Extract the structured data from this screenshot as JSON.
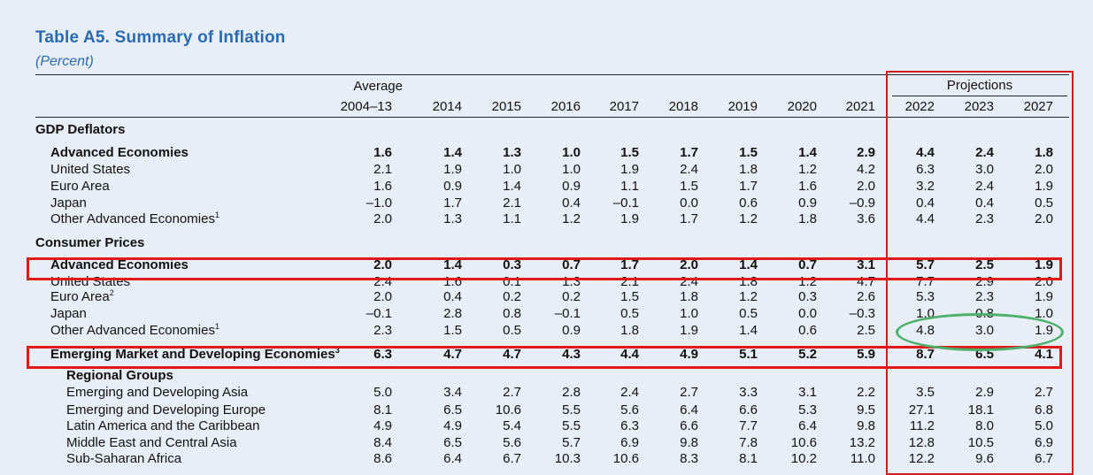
{
  "title": "Table A5. Summary of Inflation",
  "subtitle": "(Percent)",
  "header": {
    "average_top": "Average",
    "projections": "Projections",
    "years": [
      "2004–13",
      "2014",
      "2015",
      "2016",
      "2017",
      "2018",
      "2019",
      "2020",
      "2021",
      "2022",
      "2023",
      "2027"
    ]
  },
  "sections": {
    "gdp_deflators": "GDP Deflators",
    "consumer_prices": "Consumer Prices",
    "regional_groups": "Regional Groups"
  },
  "rows": {
    "gdp_adv": {
      "label": "Advanced Economies",
      "values": [
        "1.6",
        "1.4",
        "1.3",
        "1.0",
        "1.5",
        "1.7",
        "1.5",
        "1.4",
        "2.9",
        "4.4",
        "2.4",
        "1.8"
      ]
    },
    "gdp_us": {
      "label": "United States",
      "values": [
        "2.1",
        "1.9",
        "1.0",
        "1.0",
        "1.9",
        "2.4",
        "1.8",
        "1.2",
        "4.2",
        "6.3",
        "3.0",
        "2.0"
      ]
    },
    "gdp_euro": {
      "label": "Euro Area",
      "values": [
        "1.6",
        "0.9",
        "1.4",
        "0.9",
        "1.1",
        "1.5",
        "1.7",
        "1.6",
        "2.0",
        "3.2",
        "2.4",
        "1.9"
      ]
    },
    "gdp_japan": {
      "label": "Japan",
      "values": [
        "–1.0",
        "1.7",
        "2.1",
        "0.4",
        "–0.1",
        "0.0",
        "0.6",
        "0.9",
        "–0.9",
        "0.4",
        "0.4",
        "0.5"
      ]
    },
    "gdp_other": {
      "label": "Other Advanced Economies",
      "sup": "1",
      "values": [
        "2.0",
        "1.3",
        "1.1",
        "1.2",
        "1.9",
        "1.7",
        "1.2",
        "1.8",
        "3.6",
        "4.4",
        "2.3",
        "2.0"
      ]
    },
    "cp_adv": {
      "label": "Advanced Economies",
      "values": [
        "2.0",
        "1.4",
        "0.3",
        "0.7",
        "1.7",
        "2.0",
        "1.4",
        "0.7",
        "3.1",
        "5.7",
        "2.5",
        "1.9"
      ]
    },
    "cp_us": {
      "label": "United States",
      "values": [
        "2.4",
        "1.6",
        "0.1",
        "1.3",
        "2.1",
        "2.4",
        "1.8",
        "1.2",
        "4.7",
        "7.7",
        "2.9",
        "2.0"
      ]
    },
    "cp_euro": {
      "label": "Euro Area",
      "sup": "2",
      "values": [
        "2.0",
        "0.4",
        "0.2",
        "0.2",
        "1.5",
        "1.8",
        "1.2",
        "0.3",
        "2.6",
        "5.3",
        "2.3",
        "1.9"
      ]
    },
    "cp_japan": {
      "label": "Japan",
      "values": [
        "–0.1",
        "2.8",
        "0.8",
        "–0.1",
        "0.5",
        "1.0",
        "0.5",
        "0.0",
        "–0.3",
        "1.0",
        "0.8",
        "1.0"
      ]
    },
    "cp_other": {
      "label": "Other Advanced Economies",
      "sup": "1",
      "values": [
        "2.3",
        "1.5",
        "0.5",
        "0.9",
        "1.8",
        "1.9",
        "1.4",
        "0.6",
        "2.5",
        "4.8",
        "3.0",
        "1.9"
      ]
    },
    "em": {
      "label": "Emerging Market and Developing Economies",
      "sup": "3",
      "values": [
        "6.3",
        "4.7",
        "4.7",
        "4.3",
        "4.4",
        "4.9",
        "5.1",
        "5.2",
        "5.9",
        "8.7",
        "6.5",
        "4.1"
      ]
    },
    "eda": {
      "label": "Emerging and Developing Asia",
      "values": [
        "5.0",
        "3.4",
        "2.7",
        "2.8",
        "2.4",
        "2.7",
        "3.3",
        "3.1",
        "2.2",
        "3.5",
        "2.9",
        "2.7"
      ]
    },
    "ede": {
      "label": "Emerging and Developing Europe",
      "values": [
        "8.1",
        "6.5",
        "10.6",
        "5.5",
        "5.6",
        "6.4",
        "6.6",
        "5.3",
        "9.5",
        "27.1",
        "18.1",
        "6.8"
      ]
    },
    "lac": {
      "label": "Latin America and the Caribbean",
      "values": [
        "4.9",
        "4.9",
        "5.4",
        "5.5",
        "6.3",
        "6.6",
        "7.7",
        "6.4",
        "9.8",
        "11.2",
        "8.0",
        "5.0"
      ]
    },
    "meca": {
      "label": "Middle East and Central Asia",
      "values": [
        "8.4",
        "6.5",
        "5.6",
        "5.7",
        "6.9",
        "9.8",
        "7.8",
        "10.6",
        "13.2",
        "12.8",
        "10.5",
        "6.9"
      ]
    },
    "ssa": {
      "label": "Sub-Saharan Africa",
      "values": [
        "8.6",
        "6.4",
        "6.7",
        "10.3",
        "10.6",
        "8.3",
        "8.1",
        "10.2",
        "11.0",
        "12.2",
        "9.6",
        "6.7"
      ]
    }
  },
  "annotation_colors": {
    "red_box": "#e01818",
    "green_ellipse": "#4caf6a",
    "title_blue": "#2a6bb0"
  }
}
